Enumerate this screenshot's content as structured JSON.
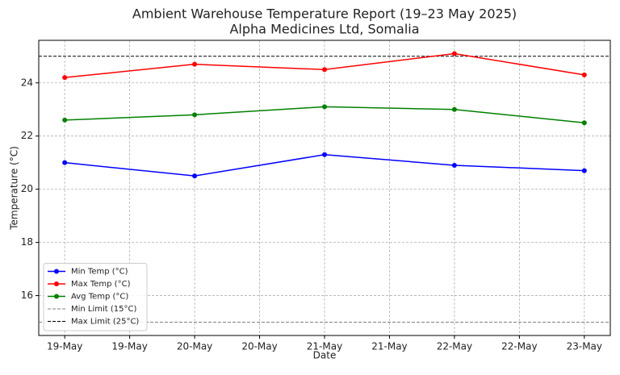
{
  "chart_data": {
    "type": "line",
    "title": "Ambient Warehouse Temperature Report (19–23 May 2025)",
    "subtitle": "Alpha Medicines Ltd, Somalia",
    "xlabel": "Date",
    "ylabel": "Temperature (°C)",
    "x": [
      19,
      20,
      21,
      22,
      23
    ],
    "xlim": [
      18.8,
      23.2
    ],
    "xticks": [
      {
        "value": 19,
        "label": "19-May"
      },
      {
        "value": 19.5,
        "label": "19-May"
      },
      {
        "value": 20,
        "label": "20-May"
      },
      {
        "value": 20.5,
        "label": "20-May"
      },
      {
        "value": 21,
        "label": "21-May"
      },
      {
        "value": 21.5,
        "label": "21-May"
      },
      {
        "value": 22,
        "label": "22-May"
      },
      {
        "value": 22.5,
        "label": "22-May"
      },
      {
        "value": 23,
        "label": "23-May"
      }
    ],
    "ylim": [
      14.5,
      25.6
    ],
    "yticks": [
      16,
      18,
      20,
      22,
      24
    ],
    "grid": true,
    "legend": "lower left",
    "series": [
      {
        "name": "Min Temp (°C)",
        "color": "#0000ff",
        "values": [
          21.0,
          20.5,
          21.3,
          20.9,
          20.7
        ]
      },
      {
        "name": "Max Temp (°C)",
        "color": "#ff0000",
        "values": [
          24.2,
          24.7,
          24.5,
          25.1,
          24.3
        ]
      },
      {
        "name": "Avg Temp (°C)",
        "color": "#008000",
        "values": [
          22.6,
          22.8,
          23.1,
          23.0,
          22.5
        ]
      }
    ],
    "hlines": [
      {
        "name": "Min Limit (15°C)",
        "value": 15,
        "color": "#808080"
      },
      {
        "name": "Max Limit (25°C)",
        "value": 25,
        "color": "#000000"
      }
    ]
  }
}
